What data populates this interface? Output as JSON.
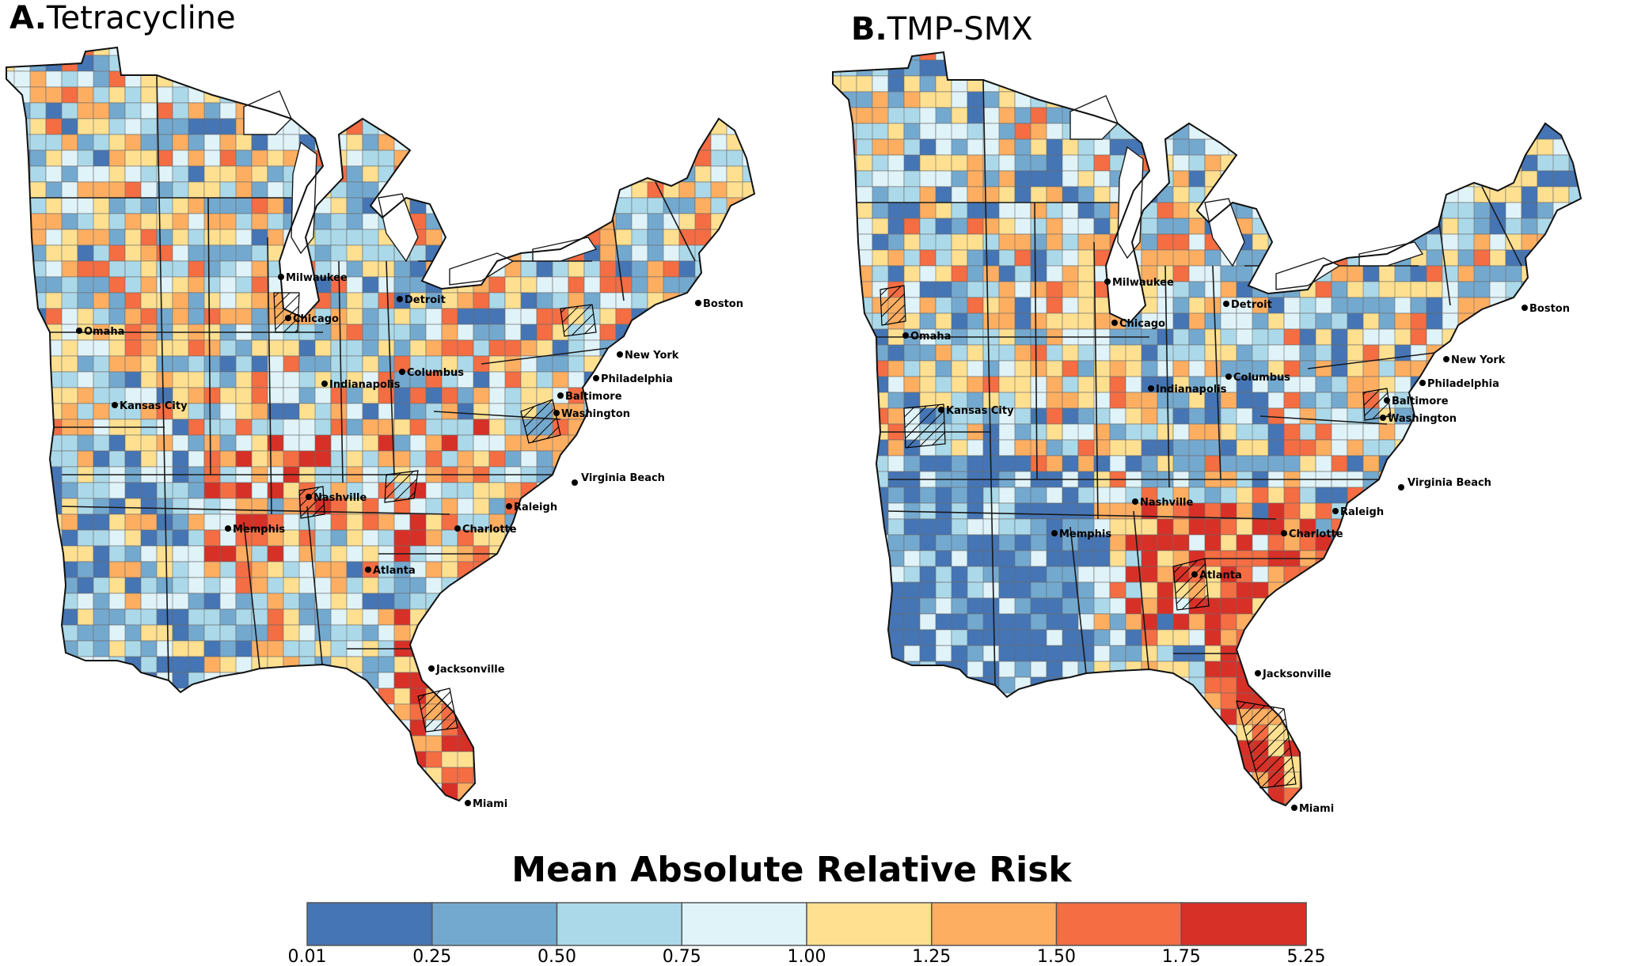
{
  "panels": [
    {
      "id": "A",
      "letter": "A.",
      "title": "Tetracycline",
      "cities": [
        "Milwaukee",
        "Detroit",
        "Boston",
        "Omaha",
        "Chicago",
        "New York",
        "Columbus",
        "Indianapolis",
        "Philadelphia",
        "Kansas City",
        "Baltimore",
        "Washington",
        "Virginia Beach",
        "Nashville",
        "Raleigh",
        "Memphis",
        "Charlotte",
        "Atlanta",
        "Jacksonville",
        "Miami"
      ]
    },
    {
      "id": "B",
      "letter": "B.",
      "title": "TMP-SMX",
      "cities": [
        "Milwaukee",
        "Detroit",
        "Boston",
        "Omaha",
        "Chicago",
        "New York",
        "Columbus",
        "Indianapolis",
        "Philadelphia",
        "Kansas City",
        "Baltimore",
        "Washington",
        "Virginia Beach",
        "Nashville",
        "Raleigh",
        "Memphis",
        "Charlotte",
        "Atlanta",
        "Jacksonville",
        "Miami"
      ]
    }
  ],
  "legend": {
    "title": "Mean Absolute Relative Risk",
    "breaks": [
      "0.01",
      "0.25",
      "0.50",
      "0.75",
      "1.00",
      "1.25",
      "1.50",
      "1.75",
      "5.25"
    ],
    "colors": [
      "#4575b4",
      "#74a9cf",
      "#abd9e9",
      "#e0f3f8",
      "#fee090",
      "#fdae61",
      "#f46d43",
      "#d73027"
    ]
  },
  "hatch_meaning": "hatched regions"
}
